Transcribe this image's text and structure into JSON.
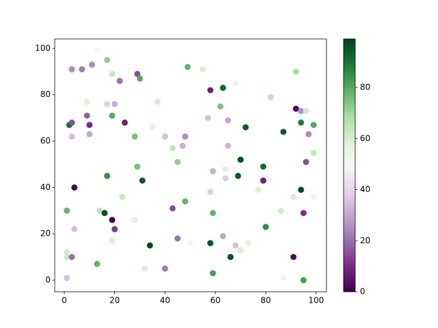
{
  "chart_data": {
    "type": "scatter",
    "x": [
      1,
      1,
      1,
      3,
      1,
      2,
      3,
      3,
      3,
      4,
      4,
      7,
      9,
      9,
      10,
      10,
      11,
      13,
      13,
      14,
      16,
      17,
      17,
      17,
      19,
      19,
      19,
      19,
      20,
      20,
      22,
      23,
      24,
      28,
      28,
      29,
      29,
      30,
      31,
      32,
      34,
      35,
      37,
      40,
      40,
      43,
      43,
      45,
      45,
      47,
      48,
      48,
      49,
      50,
      55,
      57,
      58,
      58,
      58,
      59,
      59,
      59,
      62,
      63,
      63,
      64,
      64,
      65,
      65,
      66,
      68,
      68,
      69,
      70,
      70,
      72,
      73,
      77,
      79,
      79,
      80,
      82,
      86,
      87,
      87,
      91,
      91,
      92,
      92,
      94,
      94,
      94,
      95,
      95,
      96,
      96,
      97,
      99,
      99,
      99
    ],
    "y": [
      1,
      12,
      10,
      10,
      30,
      67,
      68,
      62,
      91,
      40,
      22,
      91,
      77,
      71,
      67,
      63,
      93,
      99,
      7,
      30,
      29,
      95,
      76,
      45,
      89,
      71,
      26,
      17,
      76,
      22,
      86,
      36,
      68,
      26,
      62,
      89,
      49,
      87,
      43,
      5,
      15,
      66,
      77,
      62,
      5,
      57,
      31,
      51,
      18,
      58,
      62,
      34,
      92,
      16,
      91,
      70,
      38,
      16,
      82,
      47,
      29,
      3,
      75,
      83,
      19,
      44,
      48,
      69,
      58,
      10,
      85,
      15,
      45,
      52,
      13,
      66,
      16,
      39,
      49,
      43,
      23,
      79,
      30,
      64,
      1,
      36,
      10,
      90,
      74,
      73,
      39,
      68,
      29,
      0,
      73,
      51,
      63,
      67,
      55,
      36
    ],
    "c": [
      35,
      62,
      62,
      20,
      78,
      92,
      15,
      35,
      25,
      2,
      35,
      22,
      58,
      18,
      10,
      30,
      25,
      50,
      78,
      65,
      97,
      72,
      38,
      85,
      63,
      80,
      0,
      58,
      32,
      12,
      20,
      63,
      8,
      45,
      75,
      15,
      75,
      80,
      95,
      58,
      98,
      55,
      42,
      35,
      22,
      65,
      15,
      72,
      20,
      32,
      25,
      78,
      78,
      50,
      60,
      35,
      38,
      95,
      8,
      32,
      78,
      82,
      75,
      92,
      30,
      38,
      58,
      30,
      33,
      97,
      52,
      35,
      95,
      97,
      60,
      95,
      55,
      58,
      92,
      8,
      85,
      65,
      62,
      95,
      50,
      42,
      3,
      68,
      3,
      25,
      97,
      88,
      10,
      82,
      62,
      15,
      25,
      80,
      63,
      52
    ],
    "colormap": [
      "#40004b",
      "#762a83",
      "#9970ab",
      "#c2a5cf",
      "#e7d4e8",
      "#f7f7f7",
      "#d9f0d3",
      "#a6dba0",
      "#5aae61",
      "#1b7837",
      "#00441b"
    ],
    "xlim": [
      -3.8,
      104.1
    ],
    "ylim": [
      -5,
      104.1
    ],
    "xticks": [
      0,
      20,
      40,
      60,
      80,
      100
    ],
    "yticks": [
      0,
      20,
      40,
      60,
      80,
      100
    ],
    "clim": [
      0,
      99
    ],
    "cticks": [
      0,
      20,
      40,
      60,
      80
    ]
  }
}
